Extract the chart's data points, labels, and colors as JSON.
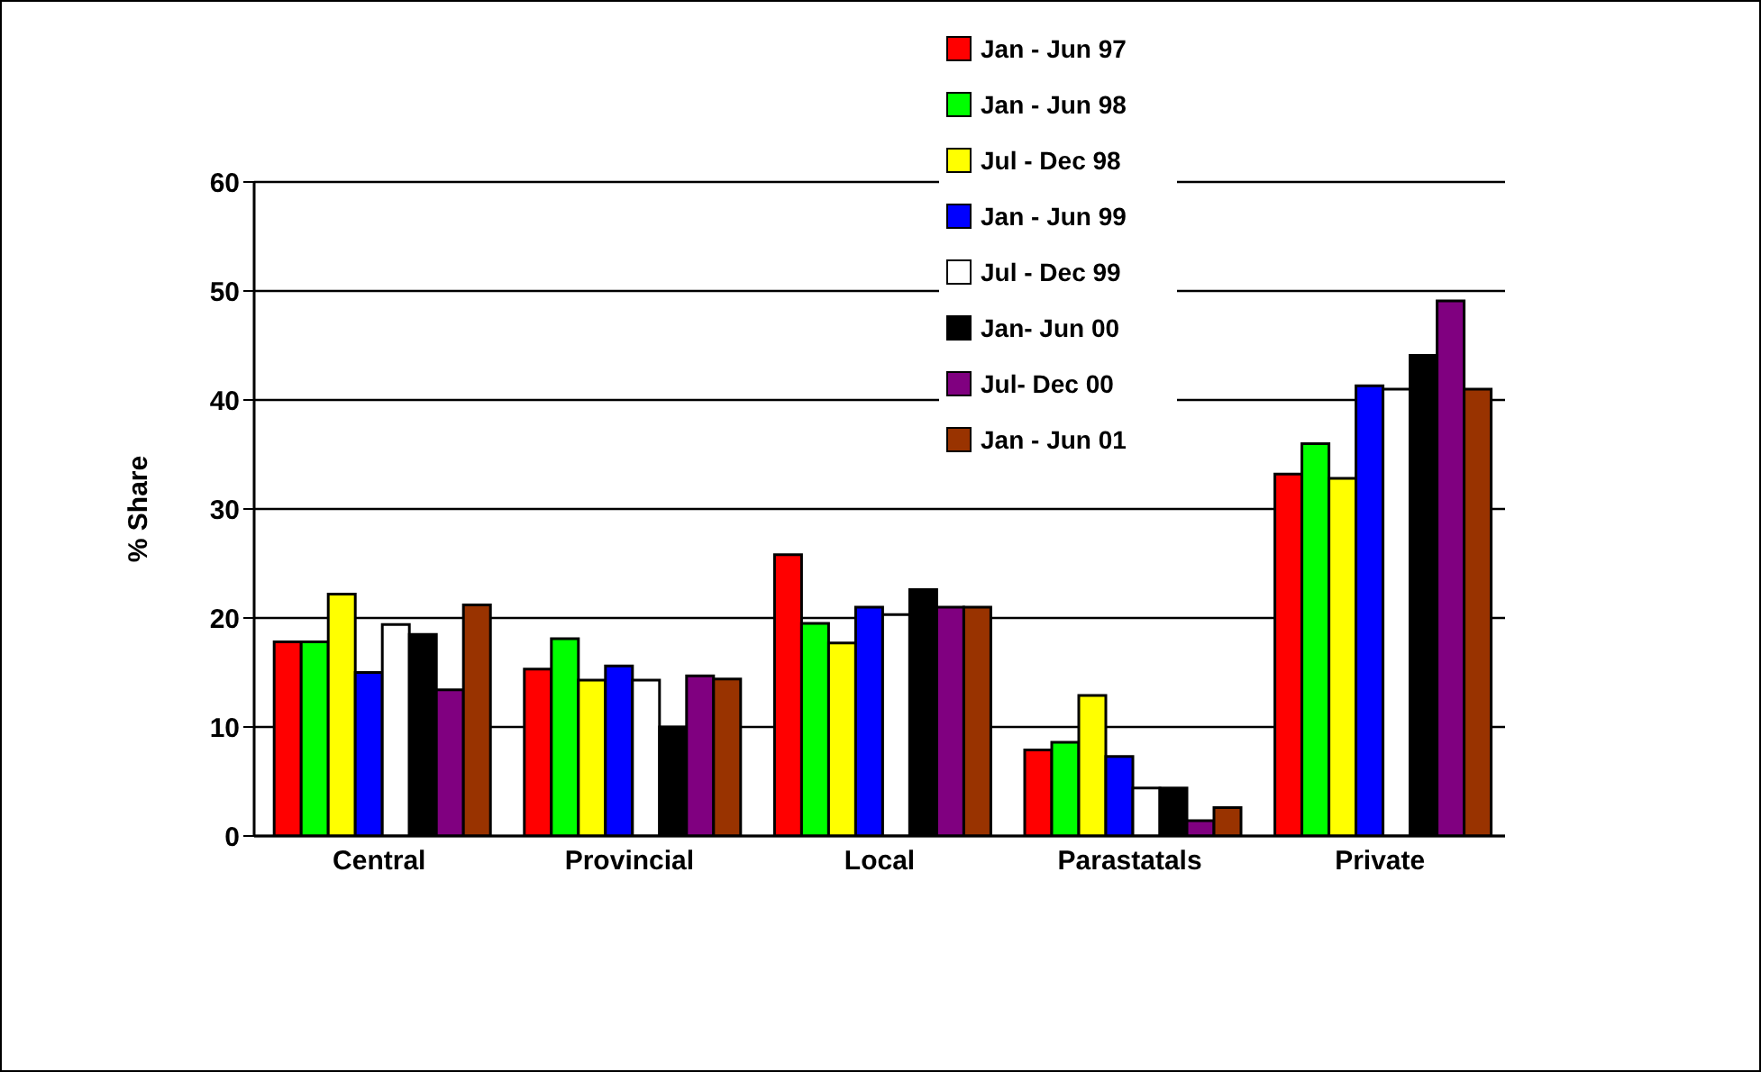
{
  "chart_data": {
    "type": "bar",
    "ylabel": "% Share",
    "categories": [
      "Central",
      "Provincial",
      "Local",
      "Parastatals",
      "Private"
    ],
    "series": [
      {
        "name": "Jan - Jun 97",
        "color": "#ff0000",
        "values": [
          17.8,
          15.3,
          25.8,
          7.9,
          33.2
        ]
      },
      {
        "name": "Jan - Jun 98",
        "color": "#00ff00",
        "values": [
          17.8,
          18.1,
          19.5,
          8.6,
          36.0
        ]
      },
      {
        "name": "Jul - Dec 98",
        "color": "#ffff00",
        "values": [
          22.2,
          14.3,
          17.7,
          12.9,
          32.8
        ]
      },
      {
        "name": "Jan - Jun 99",
        "color": "#0000ff",
        "values": [
          15.0,
          15.6,
          21.0,
          7.3,
          41.3
        ]
      },
      {
        "name": "Jul - Dec 99",
        "color": "#ffffff",
        "values": [
          19.4,
          14.3,
          20.3,
          4.4,
          41.0
        ]
      },
      {
        "name": "Jan- Jun 00",
        "color": "#000000",
        "values": [
          18.5,
          10.0,
          22.6,
          4.4,
          44.1
        ]
      },
      {
        "name": "Jul- Dec 00",
        "color": "#800080",
        "values": [
          13.4,
          14.7,
          21.0,
          1.4,
          49.1
        ]
      },
      {
        "name": "Jan - Jun 01",
        "color": "#993300",
        "values": [
          21.2,
          14.4,
          21.0,
          2.6,
          41.0
        ]
      }
    ],
    "ylim": [
      0,
      60
    ],
    "yticks": [
      0,
      10,
      20,
      30,
      40,
      50,
      60
    ],
    "grid": "y",
    "legend": "top"
  }
}
